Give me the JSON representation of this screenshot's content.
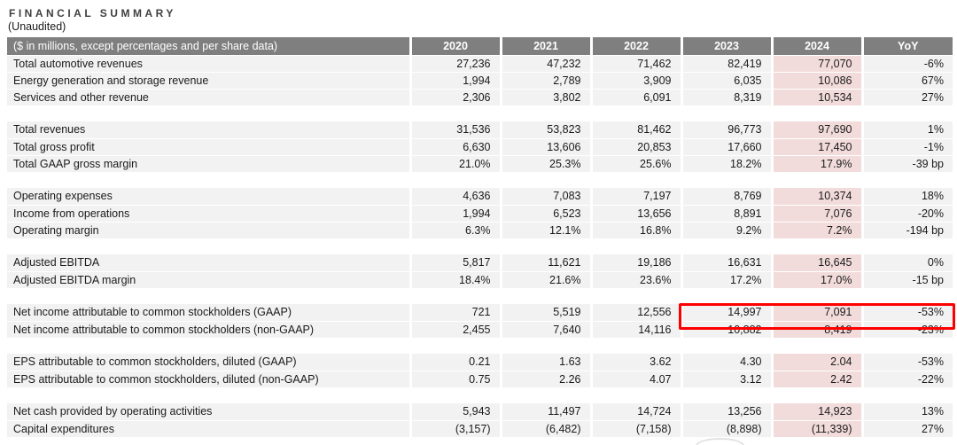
{
  "page": {
    "title": "FINANCIAL SUMMARY",
    "subtitle": "(Unaudited)"
  },
  "table": {
    "header": {
      "label": "($ in millions, except percentages and per share data)",
      "columns": [
        "2020",
        "2021",
        "2022",
        "2023",
        "2024",
        "YoY"
      ]
    },
    "sections": [
      {
        "rows": [
          {
            "label": "Total automotive revenues",
            "values": [
              "27,236",
              "47,232",
              "71,462",
              "82,419",
              "77,070",
              "-6%"
            ]
          },
          {
            "label": "Energy generation and storage revenue",
            "values": [
              "1,994",
              "2,789",
              "3,909",
              "6,035",
              "10,086",
              "67%"
            ]
          },
          {
            "label": "Services and other revenue",
            "values": [
              "2,306",
              "3,802",
              "6,091",
              "8,319",
              "10,534",
              "27%"
            ]
          }
        ]
      },
      {
        "rows": [
          {
            "label": "Total revenues",
            "values": [
              "31,536",
              "53,823",
              "81,462",
              "96,773",
              "97,690",
              "1%"
            ]
          },
          {
            "label": "Total gross profit",
            "values": [
              "6,630",
              "13,606",
              "20,853",
              "17,660",
              "17,450",
              "-1%"
            ]
          },
          {
            "label": "Total GAAP gross margin",
            "values": [
              "21.0%",
              "25.3%",
              "25.6%",
              "18.2%",
              "17.9%",
              "-39 bp"
            ]
          }
        ]
      },
      {
        "rows": [
          {
            "label": "Operating expenses",
            "values": [
              "4,636",
              "7,083",
              "7,197",
              "8,769",
              "10,374",
              "18%"
            ]
          },
          {
            "label": "Income from operations",
            "values": [
              "1,994",
              "6,523",
              "13,656",
              "8,891",
              "7,076",
              "-20%"
            ]
          },
          {
            "label": "Operating margin",
            "values": [
              "6.3%",
              "12.1%",
              "16.8%",
              "9.2%",
              "7.2%",
              "-194 bp"
            ]
          }
        ]
      },
      {
        "rows": [
          {
            "label": "Adjusted EBITDA",
            "values": [
              "5,817",
              "11,621",
              "19,186",
              "16,631",
              "16,645",
              "0%"
            ]
          },
          {
            "label": "Adjusted EBITDA margin",
            "values": [
              "18.4%",
              "21.6%",
              "23.6%",
              "17.2%",
              "17.0%",
              "-15 bp"
            ]
          }
        ]
      },
      {
        "rows": [
          {
            "label": "Net income attributable to common stockholders (GAAP)",
            "values": [
              "721",
              "5,519",
              "12,556",
              "14,997",
              "7,091",
              "-53%"
            ],
            "highlighted": true
          },
          {
            "label": "Net income attributable to common stockholders (non-GAAP)",
            "values": [
              "2,455",
              "7,640",
              "14,116",
              "10,882",
              "8,419",
              "-23%"
            ]
          }
        ]
      },
      {
        "rows": [
          {
            "label": "EPS attributable to common stockholders, diluted (GAAP)",
            "values": [
              "0.21",
              "1.63",
              "3.62",
              "4.30",
              "2.04",
              "-53%"
            ]
          },
          {
            "label": "EPS attributable to common stockholders, diluted (non-GAAP)",
            "values": [
              "0.75",
              "2.26",
              "4.07",
              "3.12",
              "2.42",
              "-22%"
            ]
          }
        ]
      },
      {
        "rows": [
          {
            "label": "Net cash provided by operating activities",
            "values": [
              "5,943",
              "11,497",
              "14,724",
              "13,256",
              "14,923",
              "13%"
            ]
          },
          {
            "label": "Capital expenditures",
            "values": [
              "(3,157)",
              "(6,482)",
              "(7,158)",
              "(8,898)",
              "(11,339)",
              "27%"
            ]
          }
        ]
      }
    ],
    "highlight": {
      "row_label": "Net income attributable to common stockholders (GAAP)",
      "columns": [
        "2023",
        "2024",
        "YoY"
      ],
      "border_color": "#ff0000"
    }
  },
  "colors": {
    "header_background": "#7f7f7f",
    "header_text": "#ffffff",
    "row_background": "#f2f2f2",
    "column_2024_background": "#f2dcdb",
    "highlight_border": "#ff0000",
    "body_text": "#1a1a1a"
  }
}
